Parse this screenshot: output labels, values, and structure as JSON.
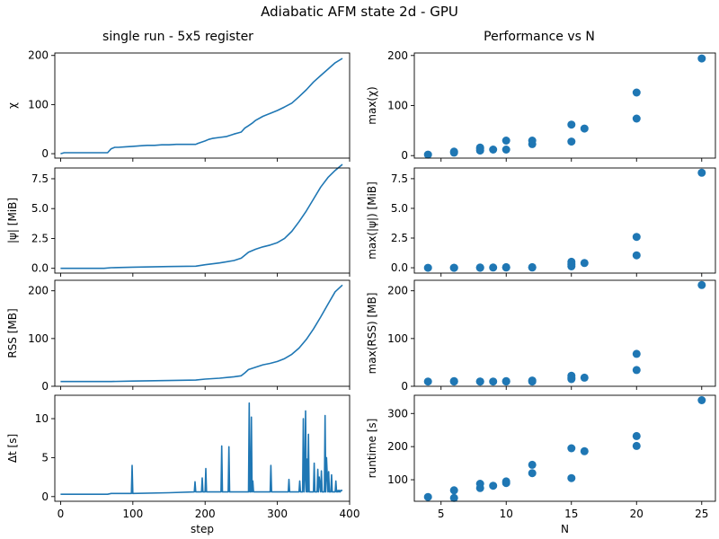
{
  "figure": {
    "title": "Adiabatic AFM state 2d - GPU",
    "left_title": "single run - 5x5 register",
    "right_title": "Performance vs N"
  },
  "colors": {
    "series": "#1f77b4"
  },
  "chart_data": [
    {
      "id": "chi_step",
      "type": "line",
      "xlabel": "step",
      "ylabel": "χ",
      "xlim": [
        -8,
        400
      ],
      "ylim": [
        -9,
        205
      ],
      "xticks": [
        0,
        100,
        200,
        300,
        400
      ],
      "show_xticklabels": false,
      "yticks": [
        0,
        100,
        200
      ],
      "series": [
        {
          "x": [
            0,
            5,
            10,
            20,
            40,
            60,
            65,
            70,
            75,
            80,
            90,
            100,
            110,
            120,
            130,
            140,
            150,
            160,
            170,
            180,
            187,
            190,
            200,
            205,
            210,
            220,
            230,
            240,
            245,
            250,
            255,
            260,
            265,
            270,
            280,
            290,
            300,
            310,
            320,
            330,
            340,
            350,
            360,
            370,
            380,
            390
          ],
          "y": [
            0,
            2,
            2,
            2,
            2,
            2,
            2,
            10,
            13,
            13,
            14,
            15,
            16,
            17,
            17,
            18,
            18,
            19,
            19,
            19,
            19,
            21,
            26,
            29,
            31,
            33,
            35,
            40,
            42,
            44,
            52,
            57,
            62,
            68,
            76,
            82,
            88,
            95,
            103,
            116,
            130,
            146,
            159,
            172,
            185,
            194
          ]
        }
      ]
    },
    {
      "id": "psi_step",
      "type": "line",
      "xlabel": "step",
      "ylabel": "|ψ| [MiB]",
      "xlim": [
        -8,
        400
      ],
      "ylim": [
        -0.4,
        8.4
      ],
      "xticks": [
        0,
        100,
        200,
        300,
        400
      ],
      "show_xticklabels": false,
      "yticks": [
        0.0,
        2.5,
        5.0,
        7.5
      ],
      "ytick_labels": [
        "0.0",
        "2.5",
        "5.0",
        "7.5"
      ],
      "series": [
        {
          "x": [
            0,
            60,
            70,
            100,
            150,
            187,
            200,
            220,
            240,
            250,
            255,
            260,
            270,
            280,
            290,
            300,
            310,
            320,
            330,
            340,
            350,
            360,
            370,
            380,
            390
          ],
          "y": [
            0.0,
            0.0,
            0.05,
            0.1,
            0.15,
            0.18,
            0.3,
            0.45,
            0.65,
            0.85,
            1.1,
            1.35,
            1.6,
            1.8,
            1.95,
            2.15,
            2.5,
            3.1,
            3.9,
            4.8,
            5.8,
            6.8,
            7.6,
            8.2,
            8.7
          ]
        }
      ]
    },
    {
      "id": "rss_step",
      "type": "line",
      "xlabel": "step",
      "ylabel": "RSS [MB]",
      "xlim": [
        -8,
        400
      ],
      "ylim": [
        0,
        222
      ],
      "xticks": [
        0,
        100,
        200,
        300,
        400
      ],
      "show_xticklabels": false,
      "yticks": [
        0,
        100,
        200
      ],
      "series": [
        {
          "x": [
            0,
            60,
            70,
            100,
            150,
            187,
            200,
            220,
            240,
            250,
            255,
            260,
            270,
            280,
            290,
            300,
            310,
            320,
            330,
            340,
            350,
            360,
            370,
            380,
            390
          ],
          "y": [
            10,
            10,
            10,
            11,
            12,
            13,
            15,
            17,
            20,
            22,
            28,
            35,
            40,
            45,
            48,
            52,
            58,
            67,
            80,
            98,
            120,
            145,
            172,
            198,
            212
          ]
        }
      ]
    },
    {
      "id": "dt_step",
      "type": "line",
      "xlabel": "step",
      "ylabel": "Δt [s]",
      "xlim": [
        -8,
        400
      ],
      "ylim": [
        -0.6,
        13.0
      ],
      "xticks": [
        0,
        100,
        200,
        300,
        400
      ],
      "show_xticklabels": true,
      "yticks": [
        0,
        5,
        10
      ],
      "series": [
        {
          "x": [
            0,
            10,
            50,
            65,
            70,
            98,
            99,
            100,
            150,
            185,
            186,
            187,
            188,
            195,
            196,
            197,
            198,
            200,
            201,
            202,
            203,
            210,
            222,
            223,
            224,
            225,
            230,
            232,
            233,
            234,
            240,
            245,
            255,
            260,
            261,
            262,
            263,
            264,
            265,
            266,
            267,
            270,
            280,
            290,
            291,
            292,
            295,
            300,
            310,
            315,
            316,
            317,
            320,
            330,
            331,
            332,
            333,
            335,
            336,
            337,
            338,
            339,
            340,
            341,
            342,
            343,
            344,
            350,
            351,
            352,
            355,
            356,
            357,
            358,
            360,
            361,
            362,
            365,
            366,
            367,
            368,
            370,
            371,
            372,
            374,
            375,
            376,
            378,
            380,
            381,
            382,
            383,
            384,
            385,
            386,
            387,
            388,
            390
          ],
          "y": [
            0.3,
            0.3,
            0.3,
            0.3,
            0.4,
            0.4,
            4.0,
            0.4,
            0.5,
            0.6,
            1.9,
            0.6,
            0.6,
            0.6,
            2.4,
            0.6,
            0.6,
            0.6,
            3.6,
            0.6,
            0.6,
            0.6,
            0.6,
            6.5,
            0.6,
            0.6,
            0.6,
            0.6,
            6.4,
            0.6,
            0.6,
            0.6,
            0.6,
            0.6,
            12.0,
            0.6,
            0.6,
            10.2,
            0.6,
            2.0,
            0.6,
            0.6,
            0.6,
            0.6,
            4.0,
            0.6,
            0.6,
            0.6,
            0.6,
            0.6,
            2.2,
            0.6,
            0.6,
            0.6,
            2.0,
            0.6,
            0.6,
            0.6,
            10.0,
            0.6,
            2.4,
            11.0,
            0.6,
            4.8,
            0.6,
            8.0,
            0.6,
            0.6,
            4.3,
            0.6,
            0.6,
            3.5,
            0.6,
            2.5,
            0.6,
            3.3,
            0.6,
            0.6,
            10.4,
            0.6,
            5.0,
            0.6,
            3.2,
            0.6,
            0.6,
            2.8,
            0.6,
            0.6,
            0.6,
            2.0,
            0.6,
            0.6,
            0.8,
            0.6,
            0.8,
            0.6,
            0.8,
            0.8
          ]
        }
      ]
    },
    {
      "id": "max_chi_N",
      "type": "scatter",
      "xlabel": "N",
      "ylabel": "max(χ)",
      "xlim": [
        2.95,
        26.05
      ],
      "ylim": [
        -5,
        205
      ],
      "xticks": [
        5,
        10,
        15,
        20,
        25
      ],
      "show_xticklabels": false,
      "yticks": [
        0,
        100,
        200
      ],
      "series": [
        {
          "x": [
            4,
            6,
            6,
            8,
            8,
            8,
            9,
            10,
            10,
            12,
            12,
            15,
            15,
            16,
            20,
            20,
            25
          ],
          "y": [
            2,
            6,
            8,
            10,
            14,
            16,
            12,
            12,
            30,
            23,
            30,
            28,
            62,
            54,
            74,
            126,
            194
          ]
        }
      ]
    },
    {
      "id": "max_psi_N",
      "type": "scatter",
      "xlabel": "N",
      "ylabel": "max(|ψ|) [MiB]",
      "xlim": [
        2.95,
        26.05
      ],
      "ylim": [
        -0.45,
        8.4
      ],
      "xticks": [
        5,
        10,
        15,
        20,
        25
      ],
      "show_xticklabels": false,
      "yticks": [
        0.0,
        2.5,
        5.0,
        7.5
      ],
      "ytick_labels": [
        "0.0",
        "2.5",
        "5.0",
        "7.5"
      ],
      "series": [
        {
          "x": [
            4,
            6,
            6,
            8,
            8,
            9,
            10,
            10,
            12,
            12,
            15,
            15,
            15,
            16,
            20,
            20,
            25
          ],
          "y": [
            0.0,
            0.0,
            0.0,
            0.0,
            0.02,
            0.02,
            0.05,
            0.02,
            0.05,
            0.02,
            0.12,
            0.3,
            0.5,
            0.4,
            1.05,
            2.6,
            8.0
          ]
        }
      ]
    },
    {
      "id": "max_rss_N",
      "type": "scatter",
      "xlabel": "N",
      "ylabel": "max(RSS) [MB]",
      "xlim": [
        2.95,
        26.05
      ],
      "ylim": [
        0,
        222
      ],
      "xticks": [
        5,
        10,
        15,
        20,
        25
      ],
      "show_xticklabels": false,
      "yticks": [
        0,
        100,
        200
      ],
      "series": [
        {
          "x": [
            4,
            6,
            6,
            8,
            8,
            9,
            10,
            10,
            12,
            12,
            15,
            15,
            15,
            16,
            20,
            20,
            25
          ],
          "y": [
            10,
            10,
            11,
            10,
            10,
            10,
            10,
            11,
            10,
            12,
            15,
            18,
            22,
            18,
            34,
            68,
            212
          ]
        }
      ]
    },
    {
      "id": "runtime_N",
      "type": "scatter",
      "xlabel": "N",
      "ylabel": "runtime [s]",
      "xlim": [
        2.95,
        26.05
      ],
      "ylim": [
        35,
        355
      ],
      "xticks": [
        5,
        10,
        15,
        20,
        25
      ],
      "show_xticklabels": true,
      "yticks": [
        100,
        200,
        300
      ],
      "series": [
        {
          "x": [
            4,
            6,
            6,
            8,
            8,
            9,
            10,
            10,
            12,
            12,
            15,
            15,
            16,
            20,
            20,
            25
          ],
          "y": [
            48,
            45,
            68,
            75,
            88,
            82,
            90,
            95,
            120,
            145,
            105,
            195,
            186,
            202,
            232,
            340
          ]
        }
      ]
    }
  ]
}
